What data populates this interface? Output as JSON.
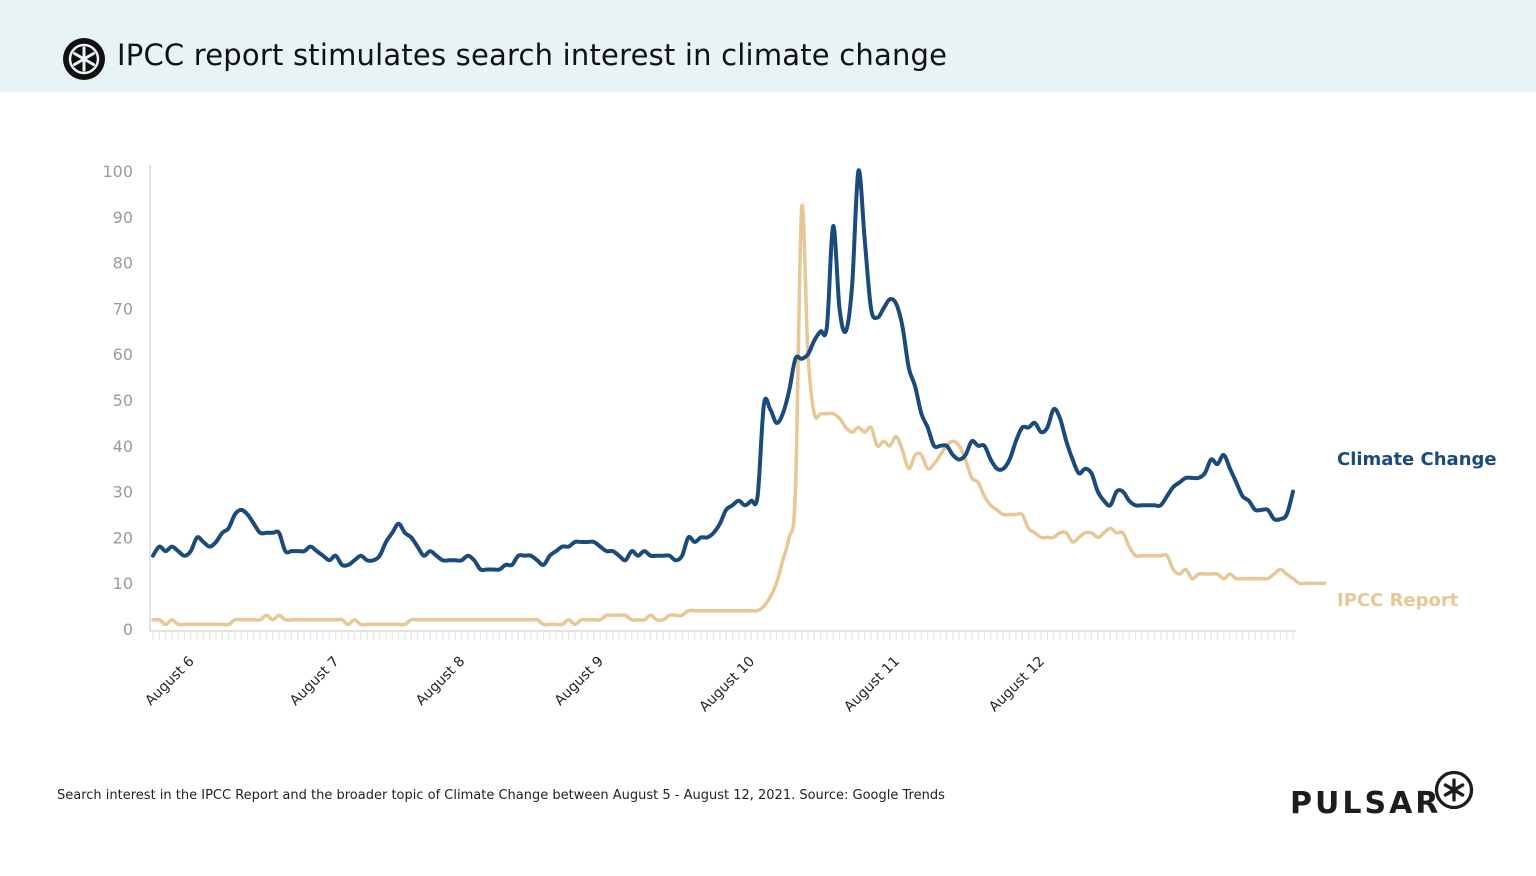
{
  "header": {
    "title": "IPCC report stimulates search interest in climate change",
    "logo_icon": "pulsar-asterisk-icon"
  },
  "footer": {
    "caption": "Search interest in the IPCC Report and the broader topic of Climate Change between August 5 - August 12, 2021. Source: Google Trends",
    "brand": "PULSAR",
    "brand_icon": "pulsar-asterisk-icon"
  },
  "chart_data": {
    "type": "line",
    "title": "",
    "xlabel": "",
    "ylabel": "",
    "ylim": [
      0,
      100
    ],
    "yticks": [
      0,
      10,
      20,
      30,
      40,
      50,
      60,
      70,
      80,
      90,
      100
    ],
    "x_tick_labels": [
      {
        "label": "August 6",
        "index": 6
      },
      {
        "label": "August 7",
        "index": 29
      },
      {
        "label": "August 8",
        "index": 49
      },
      {
        "label": "August 9",
        "index": 71
      },
      {
        "label": "August 10",
        "index": 95
      },
      {
        "label": "August 11",
        "index": 118
      },
      {
        "label": "August 12",
        "index": 141
      }
    ],
    "grid": false,
    "legend": "direct labels at right",
    "series": [
      {
        "name": "Climate Change",
        "color": "#1b4a7c",
        "values": [
          16,
          18,
          17,
          18,
          17,
          16,
          17,
          20,
          19,
          18,
          19,
          21,
          22,
          25,
          26,
          25,
          23,
          21,
          21,
          21,
          21,
          17,
          17,
          17,
          17,
          18,
          17,
          16,
          15,
          16,
          14,
          14,
          15,
          16,
          15,
          15,
          16,
          19,
          21,
          23,
          21,
          20,
          18,
          16,
          17,
          16,
          15,
          15,
          15,
          15,
          16,
          15,
          13,
          13,
          13,
          13,
          14,
          14,
          16,
          16,
          16,
          15,
          14,
          16,
          17,
          18,
          18,
          19,
          19,
          19,
          19,
          18,
          17,
          17,
          16,
          15,
          17,
          16,
          17,
          16,
          16,
          16,
          16,
          15,
          16,
          20,
          19,
          20,
          20,
          21,
          23,
          26,
          27,
          28,
          27,
          28,
          29,
          49,
          48,
          45,
          47,
          52,
          59,
          59,
          60,
          63,
          65,
          66,
          88,
          70,
          65,
          75,
          100,
          85,
          70,
          68,
          70,
          72,
          71,
          66,
          57,
          53,
          47,
          44,
          40,
          40,
          40,
          38,
          37,
          38,
          41,
          40,
          40,
          37,
          35,
          35,
          37,
          41,
          44,
          44,
          45,
          43,
          44,
          48,
          46,
          41,
          37,
          34,
          35,
          34,
          30,
          28,
          27,
          30,
          30,
          28,
          27,
          27,
          27,
          27,
          27,
          29,
          31,
          32,
          33,
          33,
          33,
          34,
          37,
          36,
          38,
          35,
          32,
          29,
          28,
          26,
          26,
          26,
          24,
          24,
          25,
          30
        ]
      },
      {
        "name": "IPCC Report",
        "color": "#e5c896",
        "values": [
          2,
          2,
          1,
          2,
          1,
          1,
          1,
          1,
          1,
          1,
          1,
          1,
          1,
          2,
          2,
          2,
          2,
          2,
          3,
          2,
          3,
          2,
          2,
          2,
          2,
          2,
          2,
          2,
          2,
          2,
          2,
          1,
          2,
          1,
          1,
          1,
          1,
          1,
          1,
          1,
          1,
          2,
          2,
          2,
          2,
          2,
          2,
          2,
          2,
          2,
          2,
          2,
          2,
          2,
          2,
          2,
          2,
          2,
          2,
          2,
          2,
          2,
          1,
          1,
          1,
          1,
          2,
          1,
          2,
          2,
          2,
          2,
          3,
          3,
          3,
          3,
          2,
          2,
          2,
          3,
          2,
          2,
          3,
          3,
          3,
          4,
          4,
          4,
          4,
          4,
          4,
          4,
          4,
          4,
          4,
          4,
          4,
          5,
          7,
          10,
          15,
          20,
          30,
          92,
          60,
          47,
          47,
          47,
          47,
          46,
          44,
          43,
          44,
          43,
          44,
          40,
          41,
          40,
          42,
          39,
          35,
          38,
          38,
          35,
          36,
          38,
          40,
          41,
          40,
          37,
          33,
          32,
          29,
          27,
          26,
          25,
          25,
          25,
          25,
          22,
          21,
          20,
          20,
          20,
          21,
          21,
          19,
          20,
          21,
          21,
          20,
          21,
          22,
          21,
          21,
          18,
          16,
          16,
          16,
          16,
          16,
          16,
          13,
          12,
          13,
          11,
          12,
          12,
          12,
          12,
          11,
          12,
          11,
          11,
          11,
          11,
          11,
          11,
          12,
          13,
          12,
          11,
          10,
          10,
          10,
          10,
          10
        ]
      }
    ]
  }
}
